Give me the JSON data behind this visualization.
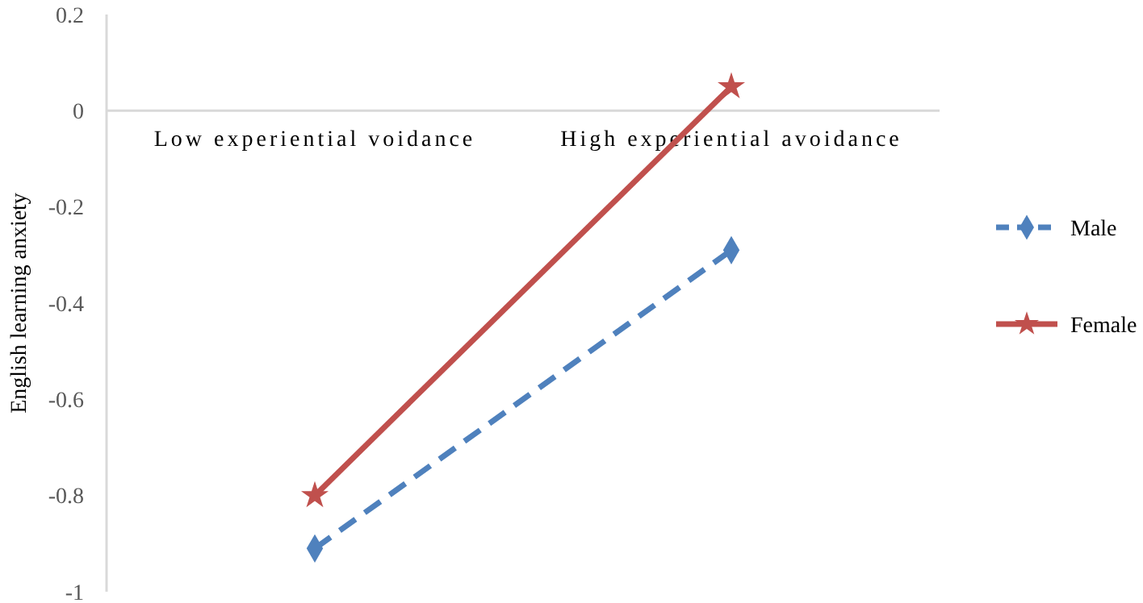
{
  "chart_data": {
    "type": "line",
    "ylabel": "English learning anxiety",
    "categories": [
      "Low experiential voidance",
      "High experiential avoidance"
    ],
    "series": [
      {
        "name": "Male",
        "color": "#4f81bd",
        "values": [
          -0.91,
          -0.29
        ],
        "line_style": "dashed",
        "marker": "diamond"
      },
      {
        "name": "Female",
        "color": "#c0504d",
        "values": [
          -0.8,
          0.05
        ],
        "line_style": "solid",
        "marker": "star"
      }
    ],
    "ylim": [
      -1,
      0.2
    ],
    "yticks": [
      -1,
      -0.8,
      -0.6,
      -0.4,
      -0.2,
      0,
      0.2
    ],
    "grid": false,
    "legend": "right"
  }
}
